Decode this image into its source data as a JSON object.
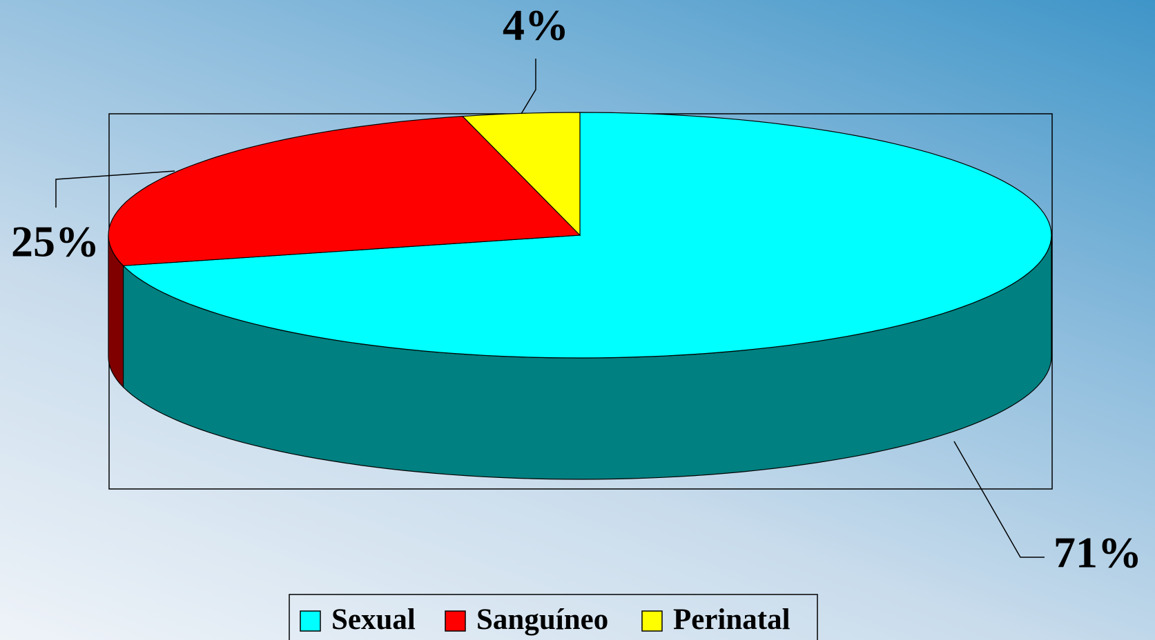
{
  "chart_data": {
    "type": "pie",
    "categories": [
      "Sexual",
      "Sanguíneo",
      "Perinatal"
    ],
    "values": [
      71,
      25,
      4
    ],
    "value_labels": [
      "71%",
      "25%",
      "4%"
    ],
    "colors": [
      "#00ffff",
      "#ff0000",
      "#ffff00"
    ],
    "legend": "bottom"
  }
}
